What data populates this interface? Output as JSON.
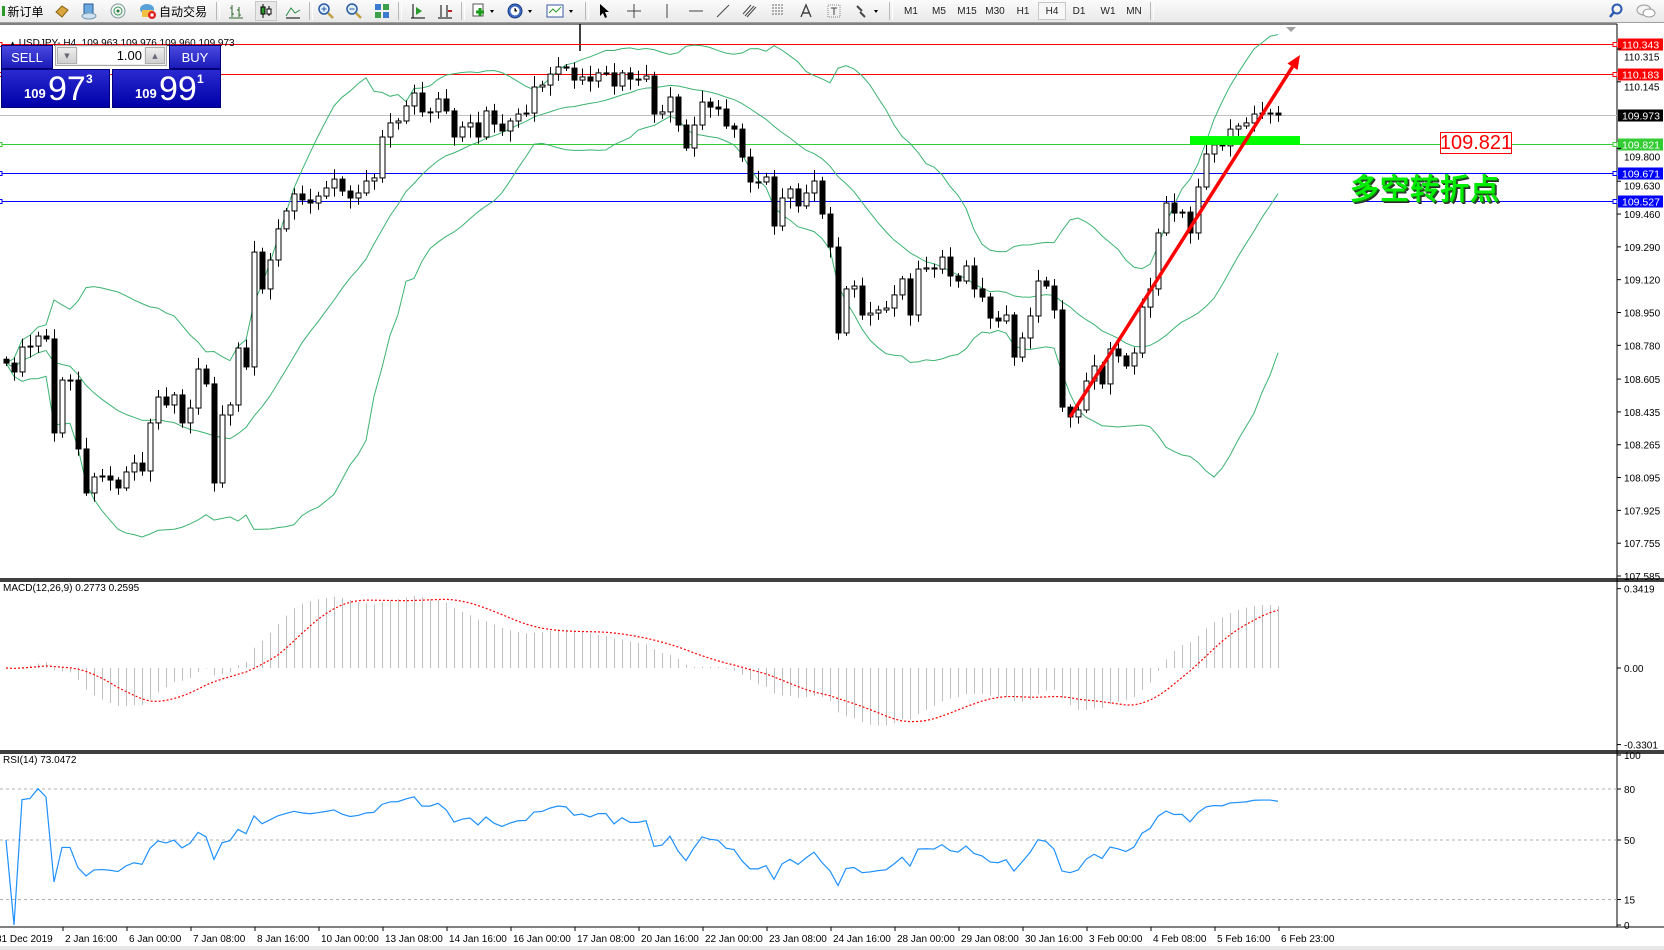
{
  "toolbar": {
    "new_order": "新订单",
    "auto_trading": "自动交易",
    "timeframes": [
      "M1",
      "M5",
      "M15",
      "M30",
      "H1",
      "H4",
      "D1",
      "W1",
      "MN"
    ],
    "active_timeframe": "H4"
  },
  "chart": {
    "header": "USDJPY-,H4  109.963 109.976 109.960 109.973",
    "symbol": "USDJPY-",
    "period": "H4",
    "ohlc": {
      "open": "109.963",
      "high": "109.976",
      "low": "109.960",
      "close": "109.973"
    }
  },
  "trade_panel": {
    "sell_label": "SELL",
    "buy_label": "BUY",
    "lot": "1.00",
    "bid": {
      "prefix": "109",
      "big": "97",
      "sup": "3"
    },
    "ask": {
      "prefix": "109",
      "big": "99",
      "sup": "1"
    }
  },
  "price_axis": {
    "ticks": [
      "110.315",
      "110.145",
      "109.800",
      "109.630",
      "109.460",
      "109.290",
      "109.120",
      "108.950",
      "108.780",
      "108.605",
      "108.435",
      "108.265",
      "108.095",
      "107.925",
      "107.755",
      "107.585"
    ],
    "range": [
      107.585,
      110.4
    ]
  },
  "horizontal_lines": [
    {
      "price": "110.343",
      "color": "#ff0000"
    },
    {
      "price": "110.183",
      "color": "#ff0000"
    },
    {
      "price": "109.973",
      "color": "#000000",
      "line_color": "#c0c0c0"
    },
    {
      "price": "109.821",
      "color": "#33cc33"
    },
    {
      "price": "109.671",
      "color": "#0000ff"
    },
    {
      "price": "109.527",
      "color": "#0000ff"
    }
  ],
  "annotation": {
    "label": "109.821",
    "text": "多空转折点",
    "zone": {
      "from_bar": 148,
      "to_bar": 161,
      "price_top": 109.864,
      "price_bottom": 109.818,
      "color": "#00ff00"
    },
    "arrow": {
      "from_bar": 133,
      "from_price": 108.409,
      "to_bar": 163,
      "to_price": 110.284,
      "color": "#ff0000"
    }
  },
  "macd": {
    "label": "MACD(12,26,9) 0.2773 0.2595",
    "axis": [
      "0.3419",
      "0.00",
      "-0.3301"
    ],
    "range": [
      -0.3301,
      0.3419
    ],
    "histogram_color": "#c0c0c0",
    "signal_color": "#ff0000"
  },
  "rsi": {
    "label": "RSI(14) 73.0472",
    "axis": [
      "100",
      "80",
      "50",
      "15",
      "0"
    ],
    "levels": [
      80,
      50,
      15
    ],
    "color": "#1e90ff"
  },
  "time_axis": {
    "labels": [
      "31 Dec 2019",
      "2 Jan 16:00",
      "6 Jan 00:00",
      "7 Jan 08:00",
      "8 Jan 16:00",
      "10 Jan 00:00",
      "13 Jan 08:00",
      "14 Jan 16:00",
      "16 Jan 00:00",
      "17 Jan 08:00",
      "20 Jan 16:00",
      "22 Jan 00:00",
      "23 Jan 08:00",
      "24 Jan 16:00",
      "28 Jan 00:00",
      "29 Jan 08:00",
      "30 Jan 16:00",
      "3 Feb 00:00",
      "4 Feb 08:00",
      "5 Feb 16:00",
      "6 Feb 23:00"
    ]
  },
  "colors": {
    "band": "#3cb371",
    "bull_fill": "#ffffff",
    "bear_fill": "#000000",
    "trade_panel": "#1a1ab8"
  },
  "chart_data": {
    "type": "candlestick",
    "indicators": [
      "Bollinger Bands (20,2)",
      "MACD(12,26,9)",
      "RSI(14)"
    ],
    "closes": [
      108.688,
      108.642,
      108.771,
      108.776,
      108.828,
      108.813,
      108.326,
      108.6,
      108.6,
      108.243,
      108.015,
      108.098,
      108.103,
      108.082,
      108.041,
      108.124,
      108.17,
      108.129,
      108.378,
      108.512,
      108.471,
      108.523,
      108.378,
      108.455,
      108.657,
      108.58,
      108.067,
      108.419,
      108.471,
      108.766,
      108.668,
      109.263,
      109.072,
      109.222,
      109.383,
      109.476,
      109.564,
      109.533,
      109.517,
      109.553,
      109.595,
      109.641,
      109.579,
      109.543,
      109.569,
      109.631,
      109.647,
      109.859,
      109.932,
      109.942,
      110.02,
      110.087,
      109.989,
      109.989,
      110.056,
      109.994,
      109.859,
      109.911,
      109.932,
      109.859,
      109.994,
      109.926,
      109.89,
      109.942,
      109.978,
      109.983,
      110.118,
      110.128,
      110.185,
      110.222,
      110.216,
      110.154,
      110.17,
      110.149,
      110.191,
      110.191,
      110.123,
      110.191,
      110.159,
      110.159,
      110.175,
      109.978,
      109.989,
      110.066,
      109.921,
      109.802,
      109.921,
      110.04,
      110.014,
      110.004,
      109.916,
      109.9,
      109.755,
      109.626,
      109.626,
      109.652,
      109.398,
      109.543,
      109.59,
      109.502,
      109.569,
      109.631,
      109.46,
      109.289,
      108.844,
      109.072,
      109.087,
      108.937,
      108.947,
      108.963,
      108.973,
      109.041,
      109.124,
      108.937,
      109.175,
      109.181,
      109.175,
      109.237,
      109.139,
      109.113,
      109.191,
      109.072,
      109.03,
      108.921,
      108.906,
      108.937,
      108.719,
      108.818,
      108.932,
      109.113,
      109.087,
      108.963,
      108.46,
      108.409,
      108.445,
      108.595,
      108.673,
      108.58,
      108.761,
      108.725,
      108.673,
      108.74,
      108.978,
      109.072,
      109.362,
      109.517,
      109.465,
      109.47,
      109.362,
      109.6,
      109.771,
      109.818,
      109.813,
      109.9,
      109.916,
      109.932,
      109.978,
      109.983,
      109.983,
      109.973
    ]
  }
}
